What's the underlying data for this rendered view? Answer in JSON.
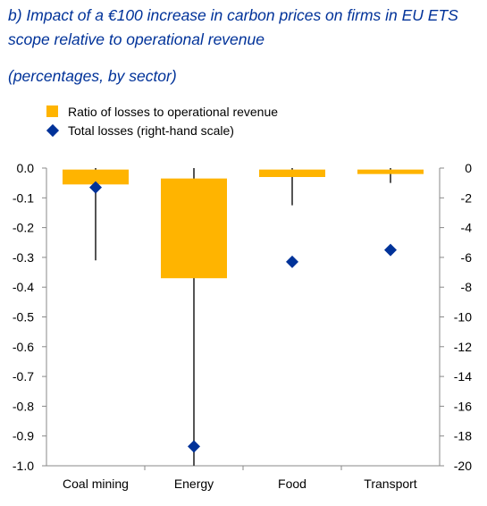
{
  "title": "b) Impact of a €100 increase in carbon prices on firms in EU ETS scope relative to operational revenue",
  "subtitle": "(percentages, by sector)",
  "colors": {
    "bar": "#FFB400",
    "diamond": "#003299",
    "whisker": "#555555",
    "axis": "#888888",
    "title": "#003299"
  },
  "legend": [
    {
      "label": "Ratio of losses to operational revenue",
      "marker": "square",
      "color": "#FFB400"
    },
    {
      "label": "Total losses (right-hand scale)",
      "marker": "diamond",
      "color": "#003299"
    }
  ],
  "chart_data": {
    "type": "bar",
    "categories": [
      "Coal mining",
      "Energy",
      "Food",
      "Transport"
    ],
    "series": [
      {
        "name": "Ratio of losses to operational revenue",
        "kind": "floating-bar-with-whiskers",
        "axis": "left",
        "bar_top": [
          -0.005,
          -0.035,
          -0.005,
          -0.005
        ],
        "bar_bottom": [
          -0.055,
          -0.37,
          -0.03,
          -0.02
        ],
        "whisker_top": [
          0.0,
          0.0,
          0.0,
          0.0
        ],
        "whisker_bottom": [
          -0.31,
          -1.0,
          -0.125,
          -0.05
        ]
      },
      {
        "name": "Total losses (right-hand scale)",
        "kind": "diamond-markers",
        "axis": "right",
        "values": [
          -1.3,
          -18.7,
          -6.3,
          -5.5
        ]
      }
    ],
    "yaxis_left": {
      "range": [
        -1.0,
        0.0
      ],
      "ticks": [
        "0.0",
        "-0.1",
        "-0.2",
        "-0.3",
        "-0.4",
        "-0.5",
        "-0.6",
        "-0.7",
        "-0.8",
        "-0.9",
        "-1.0"
      ]
    },
    "yaxis_right": {
      "range": [
        -20,
        0
      ],
      "ticks": [
        "0",
        "-2",
        "-4",
        "-6",
        "-8",
        "-10",
        "-12",
        "-14",
        "-16",
        "-18",
        "-20"
      ]
    },
    "grid": false,
    "legend_position": "top-left"
  }
}
